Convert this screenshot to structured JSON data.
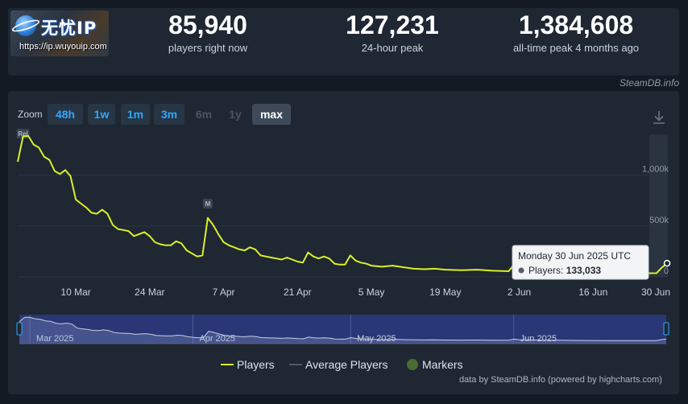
{
  "brand": {
    "name": "无忧IP",
    "url": "https://ip.wuyouip.com"
  },
  "stats": [
    {
      "value": "85,940",
      "label": "players right now"
    },
    {
      "value": "127,231",
      "label": "24-hour peak"
    },
    {
      "value": "1,384,608",
      "label": "all-time peak 4 months ago"
    }
  ],
  "credit_top": "SteamDB.info",
  "zoom": {
    "label": "Zoom",
    "buttons": [
      "48h",
      "1w",
      "1m",
      "3m",
      "6m",
      "1y",
      "max"
    ],
    "selected": "max"
  },
  "tooltip": {
    "date": "Monday 30 Jun 2025 UTC",
    "series": "Players:",
    "value": "133,033"
  },
  "legend": [
    "Players",
    "Average Players",
    "Markers"
  ],
  "credit_bottom": "data by SteamDB.info (powered by highcharts.com)",
  "colors": {
    "players": "#d9f02a",
    "accent": "#2ea8ff",
    "marker": "#4b6b35",
    "navigator_fill": "#2c3b82"
  },
  "chart_data": {
    "type": "line",
    "title": "",
    "xlabel": "",
    "ylabel": "",
    "y_ticks": [
      "0",
      "500k",
      "1,000k"
    ],
    "ylim": [
      0,
      1400000
    ],
    "xlim": [
      "2025-02-27",
      "2025-06-30"
    ],
    "x_ticks": [
      {
        "date": "2025-03-10",
        "label": "10 Mar"
      },
      {
        "date": "2025-03-24",
        "label": "24 Mar"
      },
      {
        "date": "2025-04-07",
        "label": "7 Apr"
      },
      {
        "date": "2025-04-21",
        "label": "21 Apr"
      },
      {
        "date": "2025-05-05",
        "label": "5 May"
      },
      {
        "date": "2025-05-19",
        "label": "19 May"
      },
      {
        "date": "2025-06-02",
        "label": "2 Jun"
      },
      {
        "date": "2025-06-16",
        "label": "16 Jun"
      },
      {
        "date": "2025-06-30",
        "label": "30 Jun"
      }
    ],
    "navigator_labels": [
      {
        "date": "2025-03-01",
        "label": "Mar 2025"
      },
      {
        "date": "2025-04-01",
        "label": "Apr 2025"
      },
      {
        "date": "2025-05-01",
        "label": "May 2025"
      },
      {
        "date": "2025-06-01",
        "label": "Jun 2025"
      }
    ],
    "markers": [
      {
        "date": "2025-02-28",
        "label": "Rel"
      },
      {
        "date": "2025-04-04",
        "label": "M"
      }
    ],
    "series": [
      {
        "name": "Players",
        "points": [
          [
            "2025-02-27",
            1130000
          ],
          [
            "2025-02-28",
            1380000
          ],
          [
            "2025-03-01",
            1384608
          ],
          [
            "2025-03-02",
            1300000
          ],
          [
            "2025-03-03",
            1270000
          ],
          [
            "2025-03-04",
            1180000
          ],
          [
            "2025-03-05",
            1150000
          ],
          [
            "2025-03-06",
            1040000
          ],
          [
            "2025-03-07",
            1010000
          ],
          [
            "2025-03-08",
            1050000
          ],
          [
            "2025-03-09",
            990000
          ],
          [
            "2025-03-10",
            760000
          ],
          [
            "2025-03-11",
            720000
          ],
          [
            "2025-03-12",
            680000
          ],
          [
            "2025-03-13",
            630000
          ],
          [
            "2025-03-14",
            620000
          ],
          [
            "2025-03-15",
            660000
          ],
          [
            "2025-03-16",
            620000
          ],
          [
            "2025-03-17",
            510000
          ],
          [
            "2025-03-18",
            470000
          ],
          [
            "2025-03-19",
            460000
          ],
          [
            "2025-03-20",
            450000
          ],
          [
            "2025-03-21",
            400000
          ],
          [
            "2025-03-22",
            420000
          ],
          [
            "2025-03-23",
            440000
          ],
          [
            "2025-03-24",
            400000
          ],
          [
            "2025-03-25",
            340000
          ],
          [
            "2025-03-26",
            320000
          ],
          [
            "2025-03-27",
            310000
          ],
          [
            "2025-03-28",
            310000
          ],
          [
            "2025-03-29",
            350000
          ],
          [
            "2025-03-30",
            330000
          ],
          [
            "2025-03-31",
            260000
          ],
          [
            "2025-04-01",
            230000
          ],
          [
            "2025-04-02",
            200000
          ],
          [
            "2025-04-03",
            210000
          ],
          [
            "2025-04-04",
            580000
          ],
          [
            "2025-04-05",
            510000
          ],
          [
            "2025-04-06",
            420000
          ],
          [
            "2025-04-07",
            340000
          ],
          [
            "2025-04-08",
            310000
          ],
          [
            "2025-04-09",
            290000
          ],
          [
            "2025-04-10",
            270000
          ],
          [
            "2025-04-11",
            260000
          ],
          [
            "2025-04-12",
            290000
          ],
          [
            "2025-04-13",
            270000
          ],
          [
            "2025-04-14",
            210000
          ],
          [
            "2025-04-15",
            200000
          ],
          [
            "2025-04-16",
            190000
          ],
          [
            "2025-04-17",
            180000
          ],
          [
            "2025-04-18",
            170000
          ],
          [
            "2025-04-19",
            190000
          ],
          [
            "2025-04-20",
            170000
          ],
          [
            "2025-04-21",
            150000
          ],
          [
            "2025-04-22",
            140000
          ],
          [
            "2025-04-23",
            240000
          ],
          [
            "2025-04-24",
            200000
          ],
          [
            "2025-04-25",
            180000
          ],
          [
            "2025-04-26",
            200000
          ],
          [
            "2025-04-27",
            180000
          ],
          [
            "2025-04-28",
            130000
          ],
          [
            "2025-04-29",
            120000
          ],
          [
            "2025-04-30",
            120000
          ],
          [
            "2025-05-01",
            210000
          ],
          [
            "2025-05-02",
            160000
          ],
          [
            "2025-05-03",
            140000
          ],
          [
            "2025-05-04",
            130000
          ],
          [
            "2025-05-05",
            110000
          ],
          [
            "2025-05-07",
            100000
          ],
          [
            "2025-05-09",
            110000
          ],
          [
            "2025-05-11",
            95000
          ],
          [
            "2025-05-13",
            80000
          ],
          [
            "2025-05-15",
            75000
          ],
          [
            "2025-05-17",
            80000
          ],
          [
            "2025-05-19",
            70000
          ],
          [
            "2025-05-22",
            65000
          ],
          [
            "2025-05-25",
            70000
          ],
          [
            "2025-05-28",
            60000
          ],
          [
            "2025-05-31",
            55000
          ],
          [
            "2025-06-01",
            120000
          ],
          [
            "2025-06-02",
            90000
          ],
          [
            "2025-06-04",
            75000
          ],
          [
            "2025-06-07",
            60000
          ],
          [
            "2025-06-10",
            55000
          ],
          [
            "2025-06-13",
            45000
          ],
          [
            "2025-06-16",
            40000
          ],
          [
            "2025-06-19",
            38000
          ],
          [
            "2025-06-22",
            35000
          ],
          [
            "2025-06-25",
            33000
          ],
          [
            "2025-06-28",
            36000
          ],
          [
            "2025-06-29",
            90000
          ],
          [
            "2025-06-30",
            133033
          ]
        ]
      }
    ]
  }
}
